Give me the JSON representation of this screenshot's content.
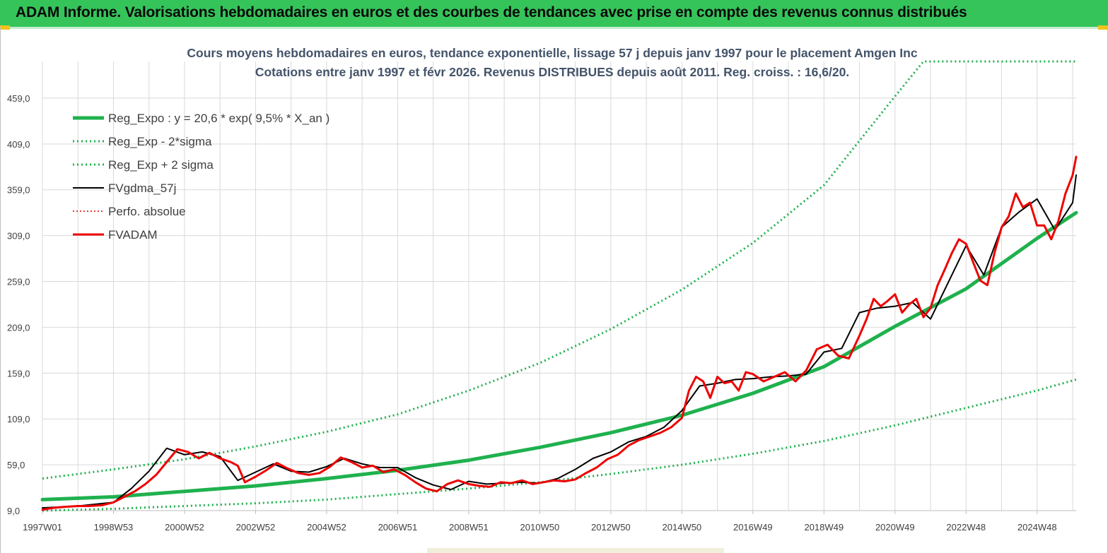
{
  "header": {
    "title": "ADAM Informe. Valorisations hebdomadaires en euros et des courbes de tendances avec prise en compte des revenus connus distribués"
  },
  "colors": {
    "banner": "#35c45a",
    "reg_expo": "#1fb14e",
    "sigma": "#1fb14e",
    "fvgdma": "#000000",
    "perfo": "#e00000",
    "fvadam": "#ee0000",
    "grid": "#d9d9d9",
    "title": "#44546a"
  },
  "chart_data": {
    "type": "line",
    "title": "Cours moyens hebdomadaires en euros, tendance exponentielle, lissage 57 j depuis janv 1997 pour le placement Amgen Inc",
    "subtitle": "Cotations entre janv 1997 et févr 2026. Revenus DISTRIBUES depuis août 2011. Reg. croiss. : 16,6/20.",
    "x_range": [
      1997.0,
      2026.1
    ],
    "x_ticks": [
      {
        "label": "1997W01",
        "x": 1997.0
      },
      {
        "label": "1998W53",
        "x": 1999.0
      },
      {
        "label": "2000W52",
        "x": 2001.0
      },
      {
        "label": "2002W52",
        "x": 2003.0
      },
      {
        "label": "2004W52",
        "x": 2005.0
      },
      {
        "label": "2006W51",
        "x": 2007.0
      },
      {
        "label": "2008W51",
        "x": 2009.0
      },
      {
        "label": "2010W50",
        "x": 2011.0
      },
      {
        "label": "2012W50",
        "x": 2013.0
      },
      {
        "label": "2014W50",
        "x": 2015.0
      },
      {
        "label": "2016W49",
        "x": 2017.0
      },
      {
        "label": "2018W49",
        "x": 2019.0
      },
      {
        "label": "2020W49",
        "x": 2021.0
      },
      {
        "label": "2022W48",
        "x": 2023.0
      },
      {
        "label": "2024W48",
        "x": 2025.0
      }
    ],
    "ylim": [
      9.0,
      499.0
    ],
    "y_ticks": [
      "9,0",
      "59,0",
      "109,0",
      "159,0",
      "209,0",
      "259,0",
      "309,0",
      "359,0",
      "409,0",
      "459,0"
    ],
    "y_tick_values": [
      9,
      59,
      109,
      159,
      209,
      259,
      309,
      359,
      409,
      459
    ],
    "legend_position": "top-left",
    "series": [
      {
        "name": "Reg_Expo : y = 20,6 * exp( 9,5% *  X_an )",
        "style": "solid-thick",
        "x": [
          1997.0,
          1999.0,
          2001.0,
          2003.0,
          2005.0,
          2007.0,
          2009.0,
          2011.0,
          2013.0,
          2015.0,
          2017.0,
          2019.0,
          2021.0,
          2023.0,
          2025.0,
          2026.1
        ],
        "values": [
          21,
          24,
          30,
          36,
          44,
          53,
          64,
          78,
          94,
          113,
          137,
          166,
          210,
          251,
          306,
          334
        ]
      },
      {
        "name": "Reg_Exp - 2*sigma",
        "style": "dotted",
        "x": [
          1997.0,
          1999.0,
          2001.0,
          2003.0,
          2005.0,
          2007.0,
          2009.0,
          2011.0,
          2013.0,
          2015.0,
          2017.0,
          2019.0,
          2021.0,
          2023.0,
          2025.0,
          2026.1
        ],
        "values": [
          9,
          11,
          14,
          17,
          21,
          27,
          33,
          40,
          49,
          59,
          71,
          85,
          102,
          121,
          140,
          152
        ]
      },
      {
        "name": "Reg_Exp + 2 sigma",
        "style": "dotted",
        "x": [
          1997.0,
          1999.0,
          2001.0,
          2003.0,
          2005.0,
          2007.0,
          2009.0,
          2011.0,
          2013.0,
          2015.0,
          2017.0,
          2019.0,
          2021.0,
          2021.8,
          2022.4,
          2026.1
        ],
        "values": [
          44,
          54,
          65,
          79,
          95,
          114,
          140,
          170,
          207,
          250,
          301,
          364,
          461,
          499,
          499,
          499
        ]
      },
      {
        "name": "FVgdma_57j",
        "style": "solid-thin",
        "x": [
          1997.0,
          1998.0,
          1999.0,
          1999.5,
          2000.0,
          2000.5,
          2001.0,
          2001.5,
          2002.0,
          2002.5,
          2003.0,
          2003.5,
          2004.0,
          2004.5,
          2005.0,
          2005.5,
          2006.0,
          2006.5,
          2007.0,
          2007.5,
          2008.0,
          2008.5,
          2009.0,
          2009.5,
          2010.0,
          2010.5,
          2011.0,
          2011.5,
          2012.0,
          2012.5,
          2013.0,
          2013.5,
          2014.0,
          2014.5,
          2015.0,
          2015.5,
          2016.0,
          2016.5,
          2017.0,
          2017.5,
          2018.0,
          2018.5,
          2019.0,
          2019.5,
          2020.0,
          2020.5,
          2021.0,
          2021.5,
          2022.0,
          2022.5,
          2023.0,
          2023.5,
          2024.0,
          2024.5,
          2025.0,
          2025.5,
          2026.0,
          2026.1
        ],
        "values": [
          12,
          14,
          18,
          33,
          52,
          77,
          70,
          73,
          68,
          42,
          51,
          60,
          52,
          51,
          57,
          66,
          60,
          56,
          56,
          45,
          37,
          32,
          41,
          38,
          39,
          40,
          39,
          44,
          54,
          66,
          73,
          84,
          90,
          100,
          118,
          145,
          148,
          152,
          153,
          155,
          156,
          158,
          182,
          186,
          225,
          230,
          232,
          236,
          218,
          258,
          298,
          266,
          318,
          335,
          349,
          315,
          345,
          375
        ]
      },
      {
        "name": "Perfo. absolue",
        "style": "dotted-red",
        "values": []
      },
      {
        "name": "FVADAM",
        "style": "solid-thick-red",
        "x": [
          1997.0,
          1997.3,
          1997.6,
          1998.0,
          1998.3,
          1998.7,
          1999.0,
          1999.3,
          1999.6,
          1999.9,
          2000.2,
          2000.5,
          2000.8,
          2001.1,
          2001.4,
          2001.7,
          2002.0,
          2002.3,
          2002.5,
          2002.7,
          2003.0,
          2003.3,
          2003.6,
          2003.9,
          2004.2,
          2004.5,
          2004.8,
          2005.1,
          2005.4,
          2005.7,
          2006.0,
          2006.3,
          2006.6,
          2006.9,
          2007.2,
          2007.5,
          2007.8,
          2008.1,
          2008.4,
          2008.7,
          2009.0,
          2009.3,
          2009.6,
          2009.9,
          2010.2,
          2010.5,
          2010.8,
          2011.1,
          2011.4,
          2011.7,
          2012.0,
          2012.3,
          2012.6,
          2012.9,
          2013.2,
          2013.5,
          2013.8,
          2014.1,
          2014.4,
          2014.7,
          2015.0,
          2015.2,
          2015.4,
          2015.6,
          2015.8,
          2016.0,
          2016.2,
          2016.4,
          2016.6,
          2016.8,
          2017.0,
          2017.3,
          2017.6,
          2017.9,
          2018.2,
          2018.5,
          2018.8,
          2019.1,
          2019.4,
          2019.7,
          2020.0,
          2020.2,
          2020.4,
          2020.6,
          2020.8,
          2021.0,
          2021.2,
          2021.4,
          2021.6,
          2021.8,
          2022.0,
          2022.2,
          2022.4,
          2022.6,
          2022.8,
          2023.0,
          2023.2,
          2023.4,
          2023.6,
          2023.8,
          2024.0,
          2024.2,
          2024.4,
          2024.6,
          2024.8,
          2025.0,
          2025.2,
          2025.4,
          2025.6,
          2025.8,
          2026.0,
          2026.1
        ],
        "values": [
          10,
          12,
          13,
          14,
          14,
          15,
          18,
          24,
          30,
          38,
          48,
          62,
          76,
          73,
          66,
          72,
          66,
          62,
          58,
          40,
          46,
          53,
          61,
          55,
          50,
          48,
          50,
          57,
          67,
          62,
          56,
          58,
          51,
          54,
          48,
          40,
          33,
          30,
          38,
          42,
          38,
          36,
          35,
          40,
          39,
          42,
          38,
          40,
          42,
          41,
          43,
          50,
          56,
          65,
          70,
          80,
          86,
          90,
          94,
          100,
          110,
          140,
          155,
          150,
          132,
          155,
          148,
          150,
          140,
          160,
          158,
          150,
          155,
          160,
          150,
          162,
          185,
          190,
          178,
          175,
          200,
          218,
          240,
          232,
          238,
          245,
          225,
          234,
          240,
          220,
          230,
          255,
          272,
          290,
          305,
          300,
          280,
          260,
          255,
          290,
          318,
          330,
          355,
          340,
          345,
          320,
          320,
          305,
          325,
          355,
          375,
          395
        ]
      }
    ]
  }
}
